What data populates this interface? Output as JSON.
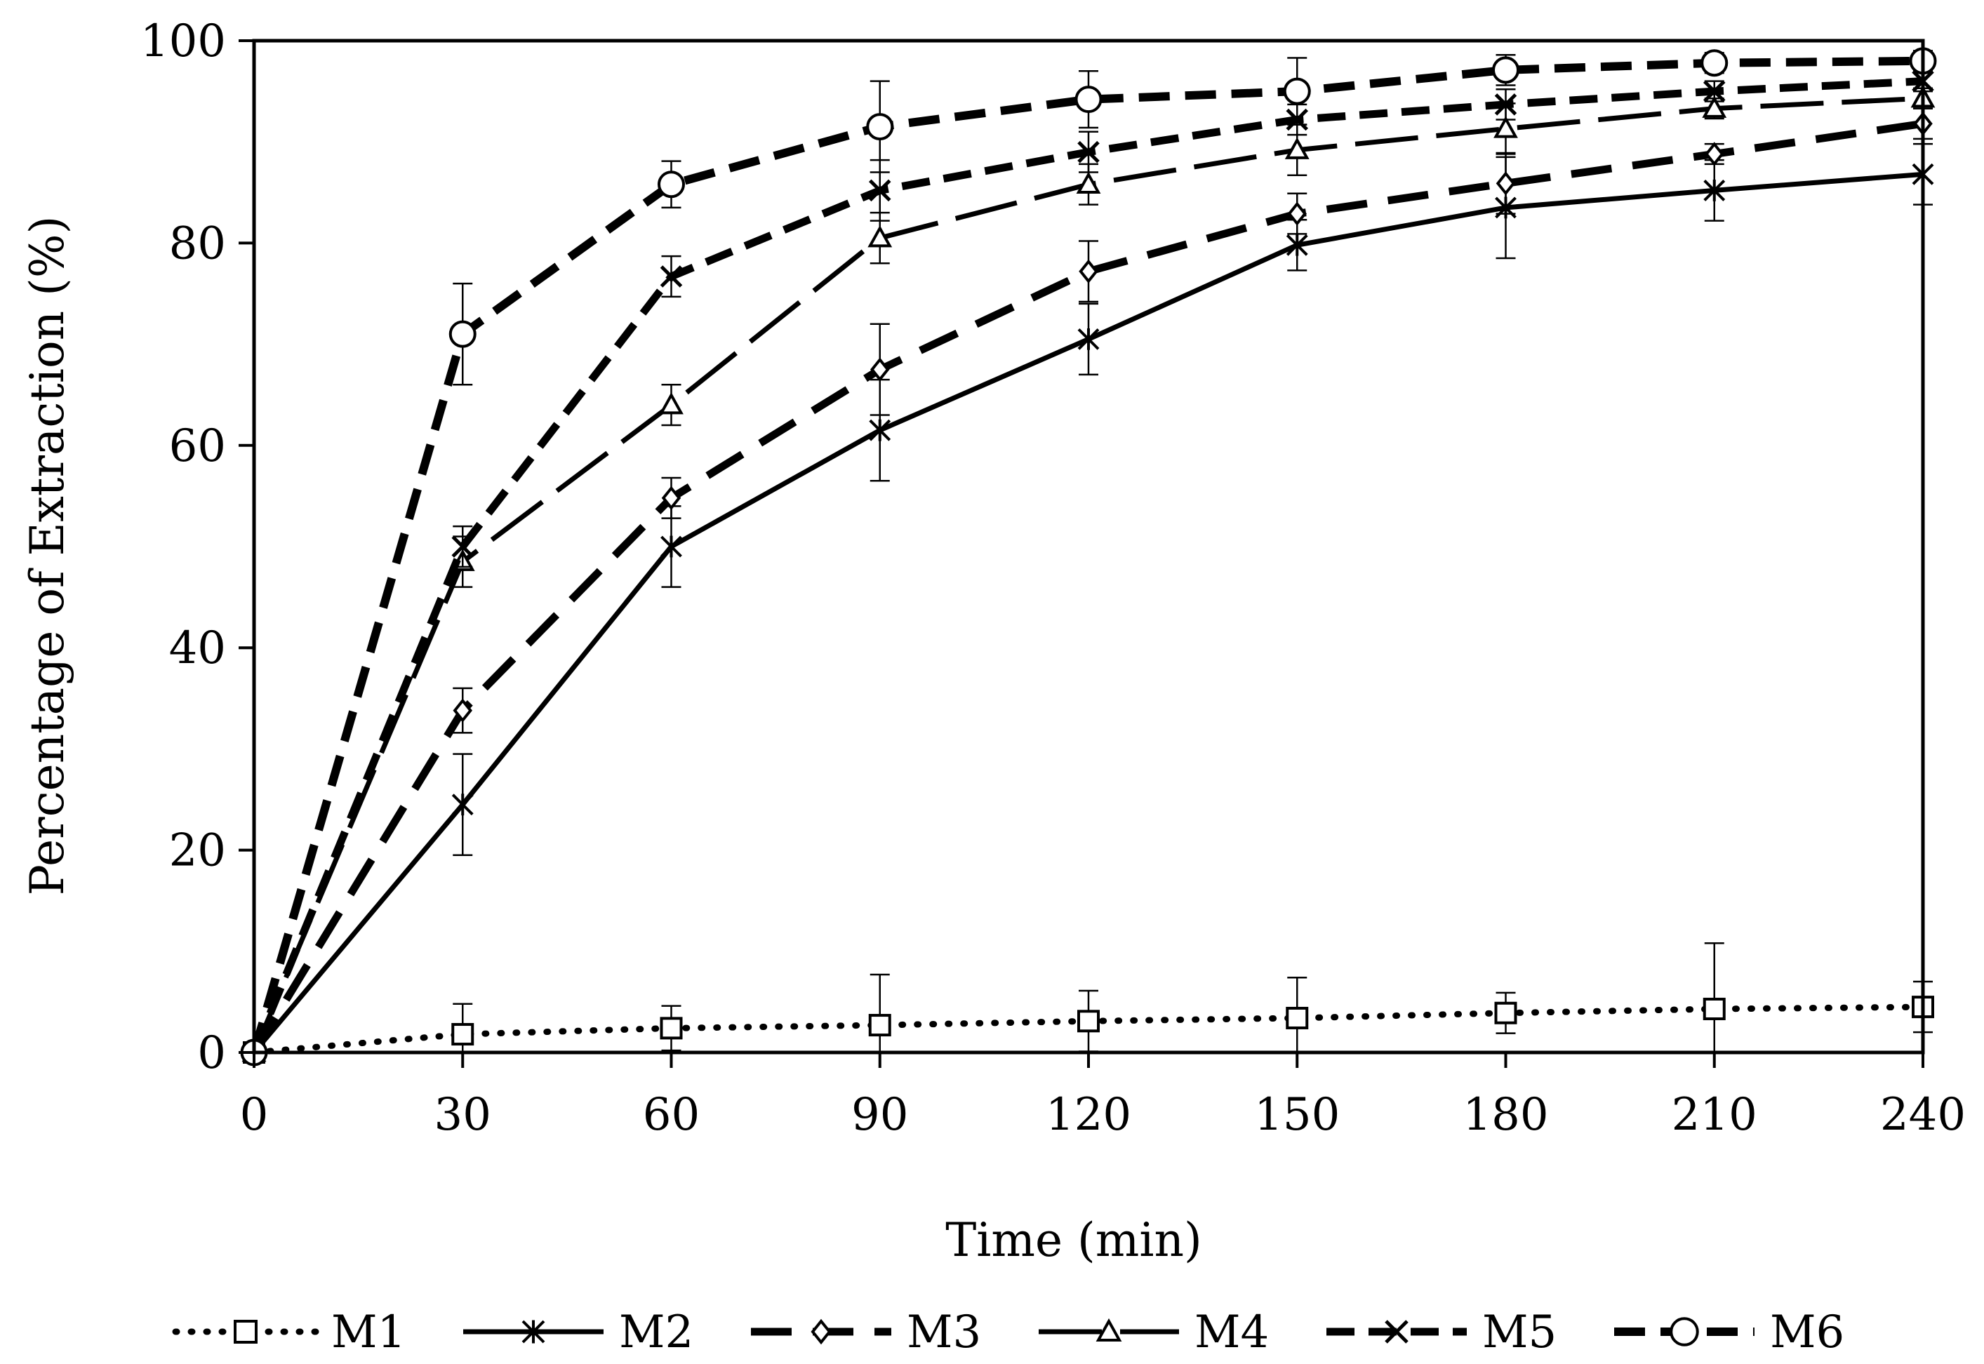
{
  "chart_data": {
    "type": "line",
    "xlabel": "Time (min)",
    "ylabel": "Percentage of Extraction (%)",
    "xlim": [
      0,
      240
    ],
    "ylim": [
      0,
      100
    ],
    "x_ticks": [
      "0",
      "30",
      "60",
      "90",
      "120",
      "150",
      "180",
      "210",
      "240"
    ],
    "y_ticks": [
      "0",
      "20",
      "40",
      "60",
      "80",
      "100"
    ],
    "grid": false,
    "legend_position": "bottom",
    "x": [
      0,
      30,
      60,
      90,
      120,
      150,
      180,
      210,
      240
    ],
    "series": [
      {
        "name": "M1",
        "marker": "square",
        "line_style": "dotted",
        "values": [
          0,
          1.8,
          2.4,
          2.7,
          3.1,
          3.4,
          3.9,
          4.3,
          4.5
        ],
        "errors": [
          0,
          3.0,
          2.2,
          5.0,
          3.0,
          4.0,
          2.0,
          6.5,
          2.5
        ]
      },
      {
        "name": "M2",
        "marker": "asterisk",
        "line_style": "solid",
        "values": [
          0,
          24.5,
          50.0,
          61.5,
          70.5,
          79.8,
          83.5,
          85.2,
          86.8
        ],
        "errors": [
          0,
          5.0,
          4.0,
          5.0,
          3.5,
          2.5,
          5.0,
          3.0,
          3.0
        ]
      },
      {
        "name": "M3",
        "marker": "diamond",
        "line_style": "dashed",
        "values": [
          0,
          33.8,
          54.8,
          67.5,
          77.2,
          82.9,
          85.9,
          88.8,
          91.8
        ],
        "errors": [
          0,
          2.2,
          2.0,
          4.5,
          3.0,
          2.0,
          3.0,
          1.0,
          1.5
        ]
      },
      {
        "name": "M4",
        "marker": "triangle",
        "line_style": "long-dash",
        "values": [
          0,
          48.5,
          64.0,
          80.5,
          85.8,
          89.2,
          91.3,
          93.3,
          94.3
        ],
        "errors": [
          0,
          2.5,
          2.0,
          2.5,
          2.0,
          2.5,
          2.5,
          1.0,
          1.0
        ]
      },
      {
        "name": "M5",
        "marker": "x",
        "line_style": "dash",
        "values": [
          0,
          50.0,
          76.7,
          85.2,
          89.0,
          92.2,
          93.7,
          95.0,
          96.0
        ],
        "errors": [
          0,
          2.0,
          2.0,
          3.0,
          2.0,
          1.5,
          1.5,
          1.0,
          1.0
        ]
      },
      {
        "name": "M6",
        "marker": "circle",
        "line_style": "heavy-dash",
        "values": [
          0,
          71.0,
          85.8,
          91.5,
          94.2,
          95.0,
          97.1,
          97.8,
          98.0
        ],
        "errors": [
          0,
          5.0,
          2.3,
          4.5,
          2.8,
          3.3,
          1.5,
          1.0,
          1.0
        ]
      }
    ]
  }
}
